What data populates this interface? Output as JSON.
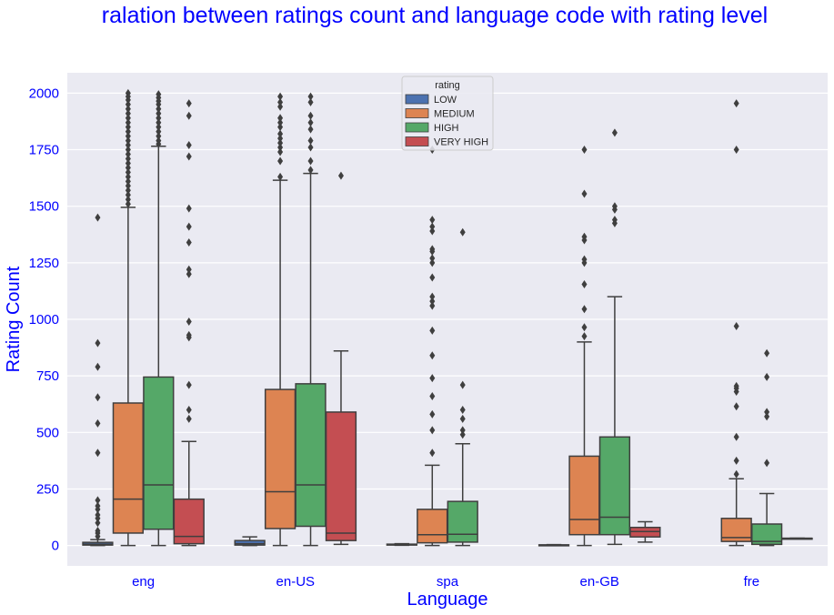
{
  "chart_data": {
    "type": "box",
    "title": "ralation between ratings count and language code with rating level",
    "xlabel": "Language",
    "ylabel": "Rating Count",
    "categories": [
      "eng",
      "en-US",
      "spa",
      "en-GB",
      "fre"
    ],
    "ylim": [
      -90,
      2090
    ],
    "yticks": [
      0,
      250,
      500,
      750,
      1000,
      1250,
      1500,
      1750,
      2000
    ],
    "grid": true,
    "legend": {
      "title": "rating",
      "placement": "top-center",
      "entries": [
        "LOW",
        "MEDIUM",
        "HIGH",
        "VERY HIGH"
      ]
    },
    "colors": {
      "LOW": "#4c72b0",
      "MEDIUM": "#dd8452",
      "HIGH": "#55a868",
      "VERY HIGH": "#c44e52",
      "plot_bg": "#eaeaf2",
      "text": "#0000ff",
      "line": "#3f3f3f"
    },
    "series": [
      {
        "name": "LOW",
        "boxes": [
          {
            "q1": 2,
            "median": 6,
            "q3": 14,
            "whisker_low": 0,
            "whisker_high": 26,
            "outliers": [
              40,
              55,
              65,
              100,
              120,
              135,
              160,
              175,
              200,
              410,
              540,
              655,
              790,
              895,
              1450
            ]
          },
          {
            "q1": 2,
            "median": 8,
            "q3": 22,
            "whisker_low": 0,
            "whisker_high": 38,
            "outliers": []
          },
          {
            "q1": 2,
            "median": 4,
            "q3": 6,
            "whisker_low": 1,
            "whisker_high": 8,
            "outliers": []
          },
          {
            "q1": 1,
            "median": 2,
            "q3": 3,
            "whisker_low": 0,
            "whisker_high": 4,
            "outliers": []
          },
          null
        ]
      },
      {
        "name": "MEDIUM",
        "boxes": [
          {
            "q1": 55,
            "median": 205,
            "q3": 630,
            "whisker_low": 0,
            "whisker_high": 1495,
            "outliers": [
              1510,
              1530,
              1550,
              1570,
              1590,
              1610,
              1630,
              1650,
              1670,
              1690,
              1710,
              1730,
              1750,
              1770,
              1790,
              1810,
              1830,
              1850,
              1870,
              1890,
              1910,
              1930,
              1950,
              1970,
              1985,
              2000
            ]
          },
          {
            "q1": 75,
            "median": 238,
            "q3": 690,
            "whisker_low": 0,
            "whisker_high": 1615,
            "outliers": [
              1630,
              1700,
              1740,
              1760,
              1780,
              1800,
              1820,
              1850,
              1870,
              1890,
              1940,
              1960,
              1985
            ]
          },
          {
            "q1": 12,
            "median": 48,
            "q3": 160,
            "whisker_low": 0,
            "whisker_high": 355,
            "outliers": [
              410,
              510,
              580,
              660,
              740,
              840,
              950,
              1060,
              1080,
              1100,
              1185,
              1250,
              1270,
              1300,
              1310,
              1390,
              1410,
              1440,
              1750
            ]
          },
          {
            "q1": 48,
            "median": 115,
            "q3": 395,
            "whisker_low": 0,
            "whisker_high": 900,
            "outliers": [
              925,
              965,
              1045,
              1155,
              1250,
              1265,
              1350,
              1365,
              1555,
              1750
            ]
          },
          {
            "q1": 18,
            "median": 35,
            "q3": 120,
            "whisker_low": 0,
            "whisker_high": 295,
            "outliers": [
              315,
              375,
              480,
              615,
              680,
              695,
              705,
              970,
              1750,
              1955
            ]
          }
        ]
      },
      {
        "name": "HIGH",
        "boxes": [
          {
            "q1": 72,
            "median": 268,
            "q3": 745,
            "whisker_low": 0,
            "whisker_high": 1765,
            "outliers": [
              1775,
              1790,
              1810,
              1830,
              1850,
              1870,
              1890,
              1910,
              1930,
              1950,
              1965,
              1980,
              1995
            ]
          },
          {
            "q1": 85,
            "median": 268,
            "q3": 715,
            "whisker_low": 0,
            "whisker_high": 1645,
            "outliers": [
              1660,
              1700,
              1760,
              1790,
              1840,
              1870,
              1900,
              1960,
              1985
            ]
          },
          {
            "q1": 15,
            "median": 50,
            "q3": 195,
            "whisker_low": 0,
            "whisker_high": 450,
            "outliers": [
              490,
              510,
              560,
              600,
              710,
              1385
            ]
          },
          {
            "q1": 48,
            "median": 125,
            "q3": 480,
            "whisker_low": 5,
            "whisker_high": 1100,
            "outliers": [
              1425,
              1440,
              1485,
              1500,
              1825
            ]
          },
          {
            "q1": 5,
            "median": 18,
            "q3": 95,
            "whisker_low": 0,
            "whisker_high": 230,
            "outliers": [
              365,
              570,
              590,
              745,
              850
            ]
          }
        ]
      },
      {
        "name": "VERY HIGH",
        "boxes": [
          {
            "q1": 8,
            "median": 40,
            "q3": 205,
            "whisker_low": 0,
            "whisker_high": 460,
            "outliers": [
              560,
              600,
              710,
              920,
              930,
              990,
              1200,
              1220,
              1340,
              1410,
              1490,
              1720,
              1770,
              1900,
              1955
            ]
          },
          {
            "q1": 22,
            "median": 55,
            "q3": 590,
            "whisker_low": 5,
            "whisker_high": 860,
            "outliers": [
              1635
            ]
          },
          null,
          {
            "q1": 38,
            "median": 62,
            "q3": 80,
            "whisker_low": 15,
            "whisker_high": 105,
            "outliers": []
          },
          {
            "q1": 32,
            "median": 32,
            "q3": 32,
            "whisker_low": 32,
            "whisker_high": 32,
            "outliers": []
          }
        ]
      }
    ]
  }
}
